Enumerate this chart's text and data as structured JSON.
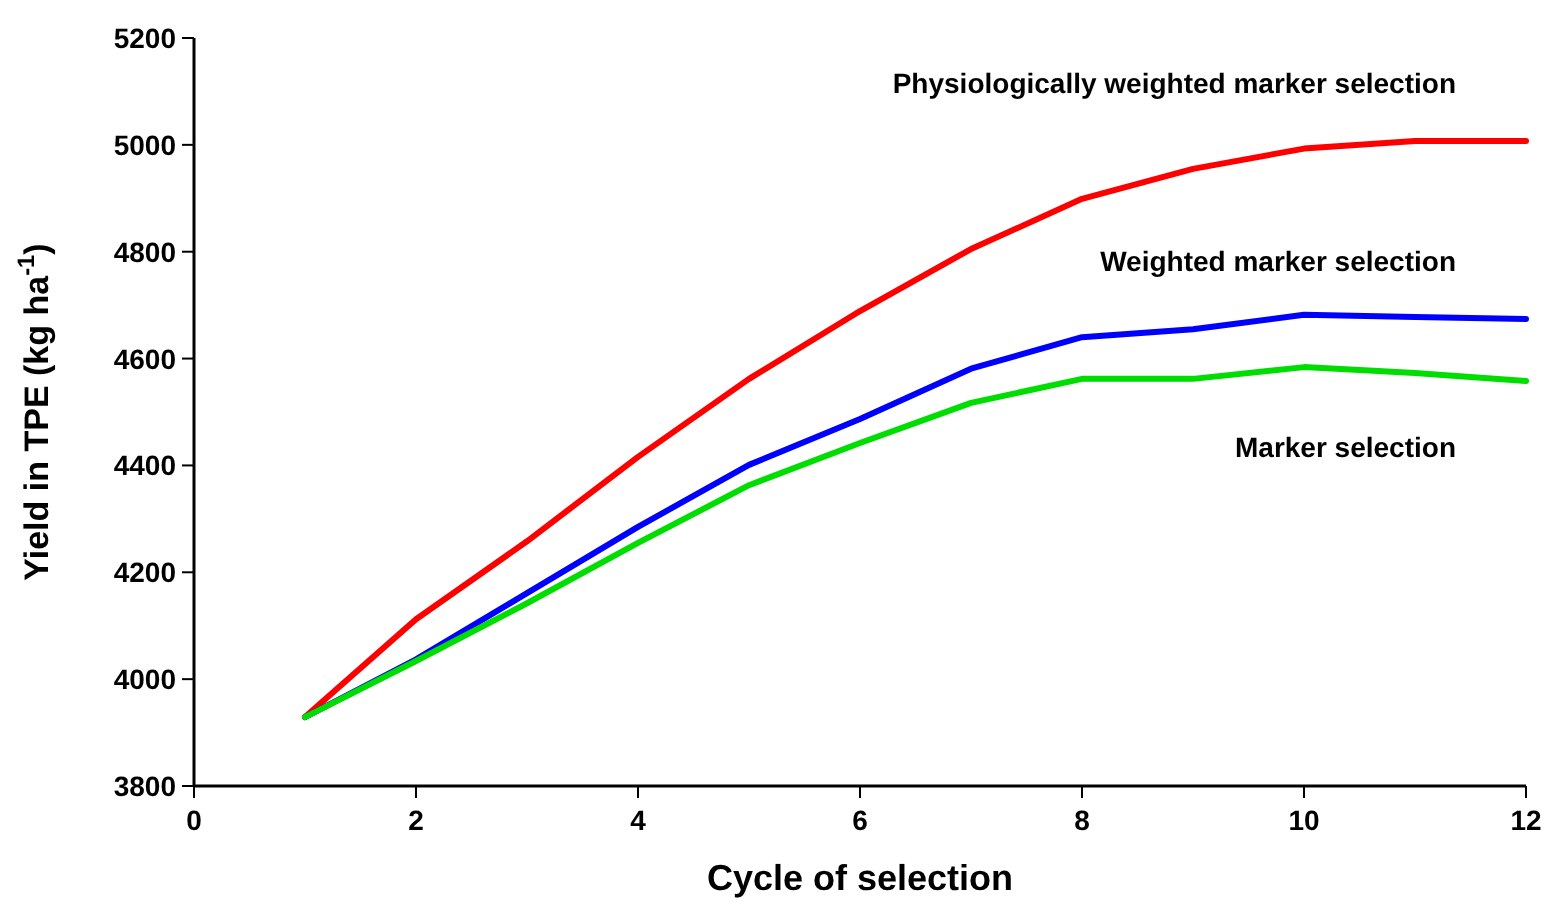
{
  "chart_data": {
    "type": "line",
    "xlabel": "Cycle of selection",
    "ylabel": "Yield in TPE (kg ha$^{-1}$)",
    "x": [
      1,
      2,
      3,
      4,
      5,
      6,
      7,
      8,
      9,
      10,
      11,
      12
    ],
    "xlim": [
      0,
      12
    ],
    "xticks": [
      0,
      2,
      4,
      6,
      8,
      10,
      12
    ],
    "ylim": [
      3800,
      5200
    ],
    "yticks": [
      3800,
      4000,
      4200,
      4400,
      4600,
      4800,
      5000,
      5200
    ],
    "grid": false,
    "marker": "none",
    "line_style": "solid",
    "series": [
      {
        "name": "Physiologically weighted marker selection",
        "color": "#ff0000",
        "values": [
          3929,
          4112,
          4258,
          4416,
          4562,
          4689,
          4805,
          4899,
          4955,
          4993,
          5007,
          5007
        ]
      },
      {
        "name": "Weighted marker selection",
        "color": "#0000ff",
        "values": [
          3929,
          4037,
          4161,
          4285,
          4401,
          4487,
          4581,
          4640,
          4655,
          4682,
          4678,
          4674
        ]
      },
      {
        "name": "Marker selection",
        "color": "#00dd00",
        "values": [
          3929,
          4034,
          4142,
          4255,
          4363,
          4442,
          4517,
          4562,
          4562,
          4584,
          4573,
          4558
        ]
      }
    ]
  }
}
